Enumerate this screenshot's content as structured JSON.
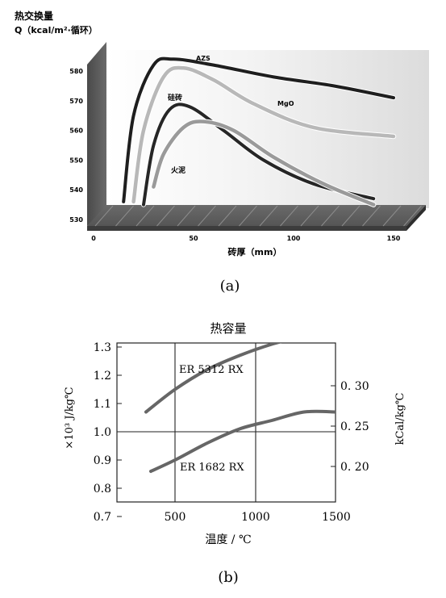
{
  "chart_data": [
    {
      "type": "line",
      "caption": "(a)",
      "ylabel_lines": [
        "热交换量",
        "Q（kcal/m²·循环）"
      ],
      "xlabel": "砖厚（mm）",
      "x_ticks": [
        "0",
        "50",
        "100",
        "150"
      ],
      "y_ticks": [
        "580",
        "570",
        "560",
        "550",
        "540",
        "530"
      ],
      "xlim": [
        0,
        150
      ],
      "ylim": [
        530,
        580
      ],
      "series": [
        {
          "name": "AZS",
          "color": "#1e1e1e",
          "x": [
            15,
            20,
            30,
            40,
            60,
            90,
            120,
            150
          ],
          "y": [
            536,
            565,
            582,
            584,
            582,
            578,
            575,
            571
          ]
        },
        {
          "name": "MgO",
          "color": "#b8b8b8",
          "x": [
            20,
            25,
            35,
            45,
            60,
            80,
            110,
            150
          ],
          "y": [
            536,
            560,
            578,
            581,
            577,
            569,
            561,
            558
          ]
        },
        {
          "name": "硅砖",
          "color": "#262626",
          "x": [
            25,
            30,
            38,
            48,
            65,
            85,
            110,
            140
          ],
          "y": [
            535,
            555,
            567,
            568,
            560,
            550,
            542,
            537
          ]
        },
        {
          "name": "火泥",
          "color": "#9a9a9a",
          "x": [
            30,
            35,
            45,
            55,
            70,
            90,
            115,
            140
          ],
          "y": [
            541,
            552,
            561,
            563,
            560,
            551,
            542,
            535
          ]
        }
      ]
    },
    {
      "type": "line",
      "caption": "(b)",
      "title": "热容量",
      "xlabel": "温度 / ℃",
      "ylabel": "×10³ J/kg℃",
      "ylabel_right": "kCal/kg℃",
      "x_ticks": [
        "500",
        "1000",
        "1500"
      ],
      "y_ticks": [
        "1.3",
        "1.2",
        "1.1",
        "1.0",
        "0.9",
        "0.8",
        "0.7"
      ],
      "y_ticks_right": [
        "0. 30",
        "0. 25",
        "0. 20"
      ],
      "xlim": [
        140,
        1500
      ],
      "ylim": [
        0.63,
        1.42
      ],
      "series": [
        {
          "name": "ER 5312 RX",
          "color": "#666666",
          "x": [
            320,
            500,
            700,
            900,
            1100,
            1300,
            1500
          ],
          "y": [
            1.07,
            1.15,
            1.22,
            1.27,
            1.31,
            1.34,
            1.37
          ]
        },
        {
          "name": "ER 1682 RX",
          "color": "#666666",
          "x": [
            350,
            500,
            700,
            900,
            1100,
            1300,
            1500
          ],
          "y": [
            0.86,
            0.9,
            0.96,
            1.01,
            1.04,
            1.07,
            1.07
          ]
        }
      ]
    }
  ]
}
